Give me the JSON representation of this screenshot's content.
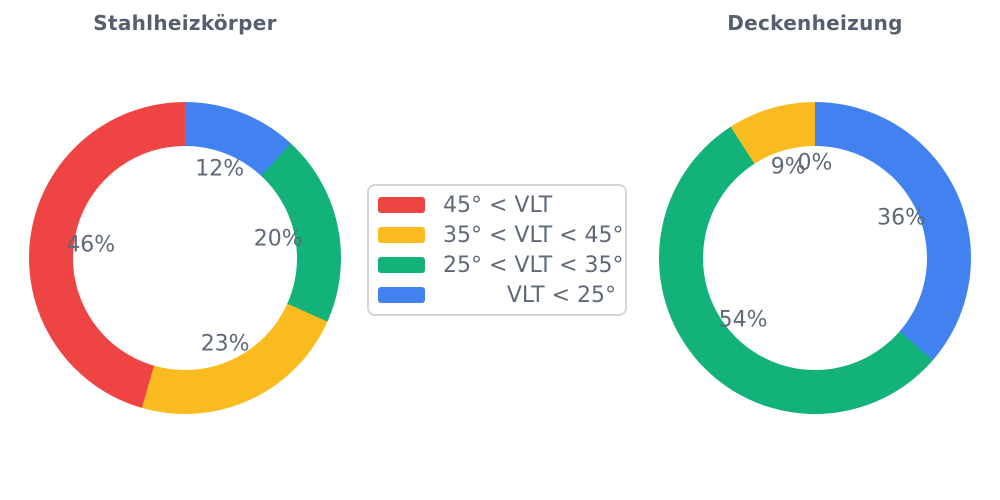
{
  "figure": {
    "background": "#ffffff"
  },
  "colors": {
    "red": "#EE4444",
    "amber": "#F9BB1F",
    "green": "#12B278",
    "blue": "#4281F0",
    "title_text": "#555F6E",
    "label_text": "#5F6978",
    "legend_border": "#D6D6D6"
  },
  "legend": {
    "items": [
      {
        "label": "45° < VLT",
        "color_key": "red"
      },
      {
        "label": "35° < VLT < 45°",
        "color_key": "amber"
      },
      {
        "label": "25° < VLT < 35°",
        "color_key": "green"
      },
      {
        "label": "VLT < 25°",
        "color_key": "blue"
      }
    ]
  },
  "chart_data": [
    {
      "type": "pie",
      "subtype": "donut",
      "title": "Stahlheizkörper",
      "labels": [
        "45° < VLT",
        "35° < VLT < 45°",
        "25° < VLT < 35°",
        "VLT < 25°"
      ],
      "values": [
        46,
        23,
        20,
        12
      ],
      "pct_labels": [
        "46%",
        "23%",
        "20%",
        "12%"
      ],
      "color_keys": [
        "red",
        "amber",
        "green",
        "blue"
      ],
      "start_angle_deg": 90,
      "direction": "counterclockwise",
      "hole_ratio": 0.72,
      "pct_distance": 0.61
    },
    {
      "type": "pie",
      "subtype": "donut",
      "title": "Deckenheizung",
      "labels": [
        "45° < VLT",
        "35° < VLT < 45°",
        "25° < VLT < 35°",
        "VLT < 25°"
      ],
      "values": [
        0,
        9,
        54,
        36
      ],
      "pct_labels": [
        "0%",
        "9%",
        "54%",
        "36%"
      ],
      "color_keys": [
        "red",
        "amber",
        "green",
        "blue"
      ],
      "start_angle_deg": 90,
      "direction": "counterclockwise",
      "hole_ratio": 0.72,
      "pct_distance": 0.61
    }
  ]
}
